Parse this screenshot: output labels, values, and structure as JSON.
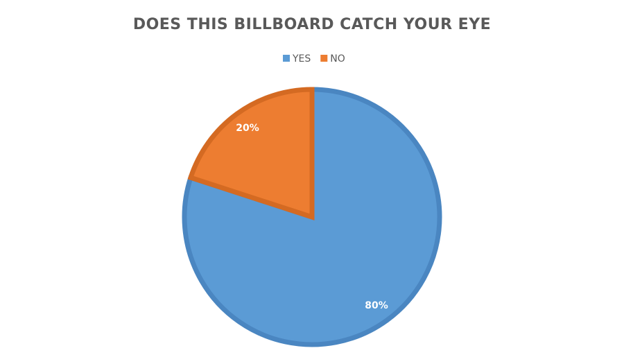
{
  "chart_data": {
    "type": "pie",
    "title": "DOES THIS BILLBOARD CATCH YOUR EYE",
    "categories": [
      "YES",
      "NO"
    ],
    "values": [
      80,
      20
    ],
    "value_labels": [
      "80%",
      "20%"
    ],
    "colors": [
      "#5b9bd5",
      "#ed7d31"
    ],
    "borders": [
      "#4a86c1",
      "#d46a22"
    ],
    "legend": "top"
  }
}
